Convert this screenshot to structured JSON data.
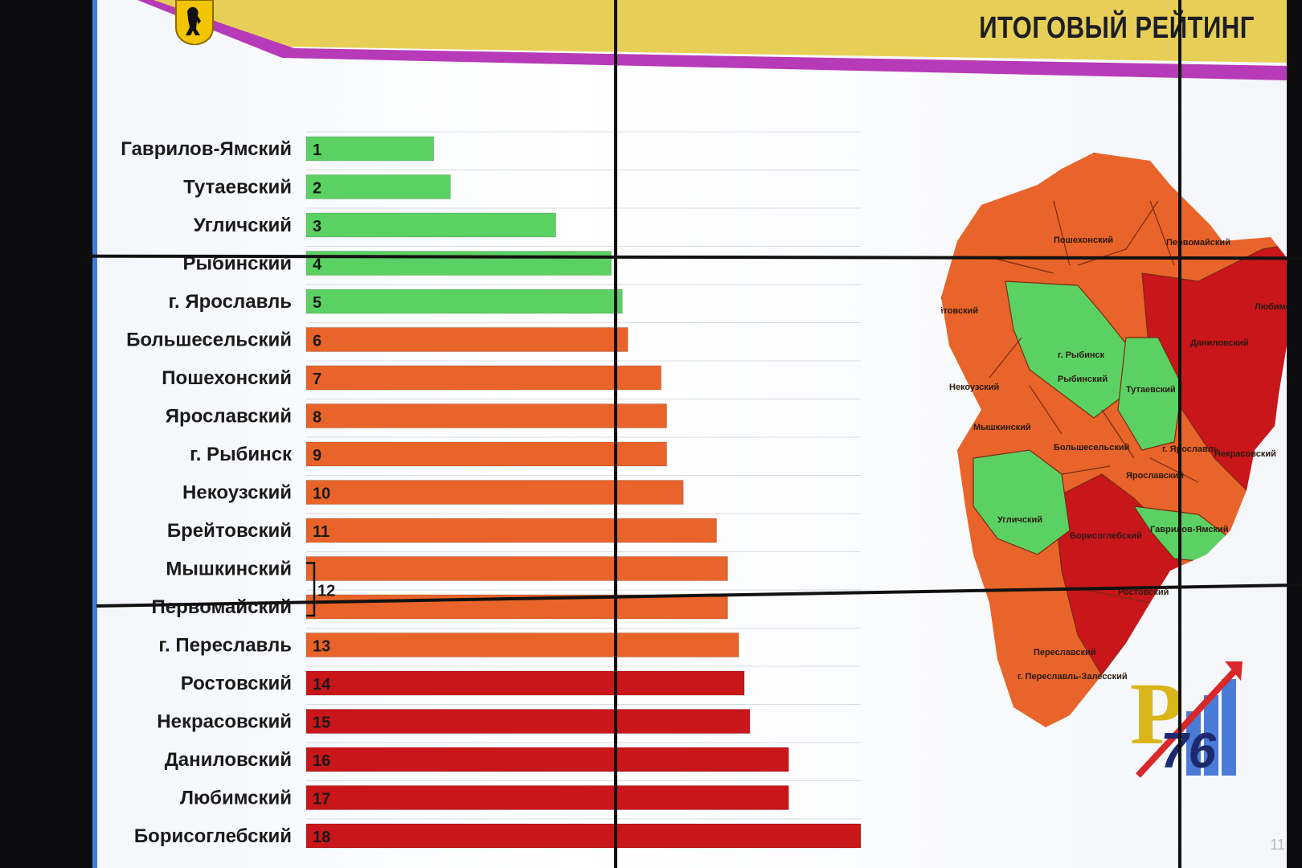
{
  "header": {
    "title": "ИТОГОВЫЙ РЕЙТИНГ"
  },
  "colors": {
    "green": "#5cd163",
    "orange": "#e8642a",
    "red": "#c8161a",
    "banner": "#e7cf57",
    "stripe": "#b73ab8"
  },
  "chart_data": {
    "type": "bar",
    "orientation": "horizontal",
    "categories": [
      "Гаврилов-Ямский",
      "Тутаевский",
      "Угличский",
      "Рыбинский",
      "г. Ярославль",
      "Большесельский",
      "Пошехонский",
      "Ярославский",
      "г. Рыбинск",
      "Некоузский",
      "Брейтовский",
      "Мышкинский",
      "Первомайский",
      "г. Переславль",
      "Ростовский",
      "Некрасовский",
      "Даниловский",
      "Любимский",
      "Борисоглебский"
    ],
    "bars": [
      {
        "rank": "1",
        "value": 23,
        "group": "green"
      },
      {
        "rank": "2",
        "value": 26,
        "group": "green"
      },
      {
        "rank": "3",
        "value": 45,
        "group": "green"
      },
      {
        "rank": "4",
        "value": 55,
        "group": "green"
      },
      {
        "rank": "5",
        "value": 57,
        "group": "green"
      },
      {
        "rank": "6",
        "value": 58,
        "group": "orange"
      },
      {
        "rank": "7",
        "value": 64,
        "group": "orange"
      },
      {
        "rank": "8",
        "value": 65,
        "group": "orange"
      },
      {
        "rank": "9",
        "value": 65,
        "group": "orange"
      },
      {
        "rank": "10",
        "value": 68,
        "group": "orange"
      },
      {
        "rank": "11",
        "value": 74,
        "group": "orange"
      },
      {
        "rank": "",
        "value": 76,
        "group": "orange"
      },
      {
        "rank": "",
        "value": 76,
        "group": "orange"
      },
      {
        "rank": "13",
        "value": 78,
        "group": "orange"
      },
      {
        "rank": "14",
        "value": 79,
        "group": "red"
      },
      {
        "rank": "15",
        "value": 80,
        "group": "red"
      },
      {
        "rank": "16",
        "value": 87,
        "group": "red"
      },
      {
        "rank": "17",
        "value": 87,
        "group": "red"
      },
      {
        "rank": "18",
        "value": 100,
        "group": "red"
      }
    ],
    "shared_rank_label": "12",
    "xlim": [
      0,
      100
    ],
    "grid": true
  },
  "map": {
    "labels": [
      "Пошехонский",
      "Первомайский",
      "Брейтовский",
      "Любимский",
      "Даниловский",
      "г. Рыбинск",
      "Рыбинский",
      "Некоузский",
      "Тутаевский",
      "Мышкинский",
      "Большесельский",
      "г. Ярославль",
      "Некрасовский",
      "Ярославский",
      "Угличский",
      "Гаврилов-Ямский",
      "Борисоглебский",
      "Ростовский",
      "Переславский",
      "г. Переславль-Залесский"
    ]
  },
  "logo": {
    "text": "76",
    "letter": "Р"
  },
  "page_number": "11"
}
